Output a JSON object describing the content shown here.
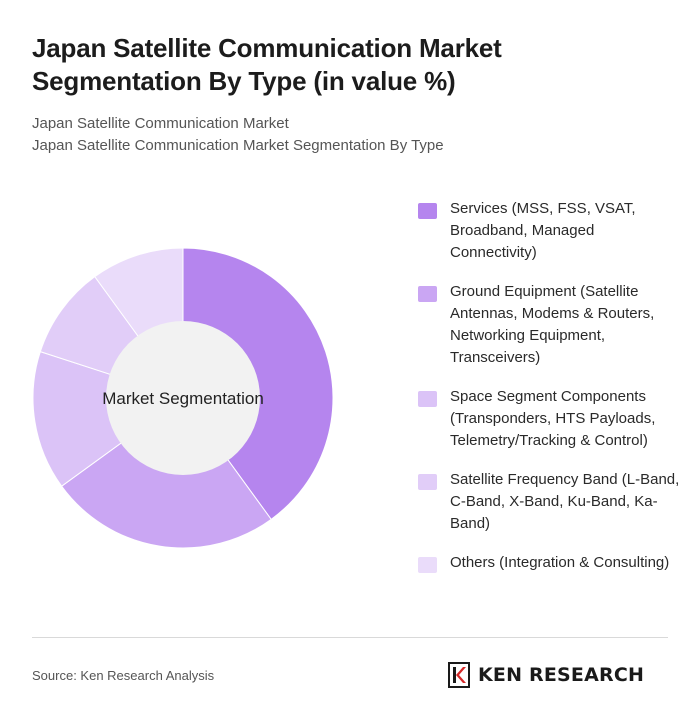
{
  "header": {
    "title": "Japan Satellite Communication Market Segmentation By Type (in value %)",
    "subtitle_line1": "Japan Satellite Communication Market",
    "subtitle_line2": "Japan Satellite Communication Market Segmentation By Type"
  },
  "chart_data": {
    "type": "pie",
    "variant": "donut",
    "center_label": "Market Segmentation",
    "legend_placement": "right",
    "categories": [
      "Services (MSS, FSS, VSAT, Broadband, Managed Connectivity)",
      "Ground Equipment (Satellite Antennas, Modems & Routers, Networking Equipment, Transceivers)",
      "Space Segment Components (Transponders, HTS Payloads, Telemetry/Tracking & Control)",
      "Satellite Frequency Band (L-Band, C-Band, X-Band, Ku-Band, Ka-Band)",
      "Others (Integration & Consulting)"
    ],
    "values": [
      40,
      25,
      15,
      10,
      10
    ],
    "colors": [
      "#b585ee",
      "#caa6f3",
      "#dbc3f7",
      "#e1cdf8",
      "#eadcfa"
    ]
  },
  "footer": {
    "source": "Source: Ken Research Analysis",
    "logo_text": "KEN RESEARCH"
  }
}
